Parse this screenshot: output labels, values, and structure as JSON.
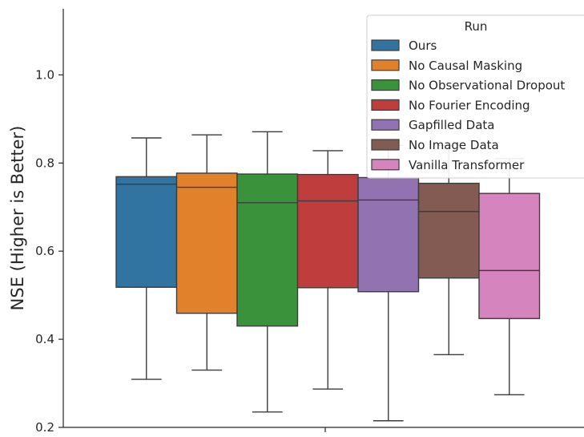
{
  "chart_data": {
    "type": "box",
    "ylabel": "NSE (Higher is Better)",
    "xlabel": "",
    "ylim": [
      0.2,
      1.15
    ],
    "yticks": [
      0.2,
      0.4,
      0.6,
      0.8,
      1.0
    ],
    "ytick_labels": [
      "0.2",
      "0.4",
      "0.6",
      "0.8",
      "1.0"
    ],
    "grid": false,
    "legend": {
      "title": "Run",
      "placement": "top-right"
    },
    "series": [
      {
        "name": "Ours",
        "color": "#3274a1",
        "whisker_low": 0.309,
        "q1": 0.518,
        "median": 0.752,
        "q3": 0.769,
        "whisker_high": 0.857
      },
      {
        "name": "No Causal Masking",
        "color": "#e1812c",
        "whisker_low": 0.33,
        "q1": 0.459,
        "median": 0.745,
        "q3": 0.777,
        "whisker_high": 0.864
      },
      {
        "name": "No Observational Dropout",
        "color": "#3a923a",
        "whisker_low": 0.235,
        "q1": 0.43,
        "median": 0.71,
        "q3": 0.775,
        "whisker_high": 0.871
      },
      {
        "name": "No Fourier Encoding",
        "color": "#c03d3e",
        "whisker_low": 0.287,
        "q1": 0.517,
        "median": 0.714,
        "q3": 0.774,
        "whisker_high": 0.828
      },
      {
        "name": "Gapfilled Data",
        "color": "#9372b2",
        "whisker_low": 0.215,
        "q1": 0.508,
        "median": 0.716,
        "q3": 0.767,
        "whisker_high": 0.84
      },
      {
        "name": "No Image Data",
        "color": "#845b53",
        "whisker_low": 0.365,
        "q1": 0.539,
        "median": 0.69,
        "q3": 0.754,
        "whisker_high": 0.84
      },
      {
        "name": "Vanilla Transformer",
        "color": "#d684bd",
        "whisker_low": 0.274,
        "q1": 0.447,
        "median": 0.556,
        "q3": 0.731,
        "whisker_high": 0.81
      }
    ]
  }
}
